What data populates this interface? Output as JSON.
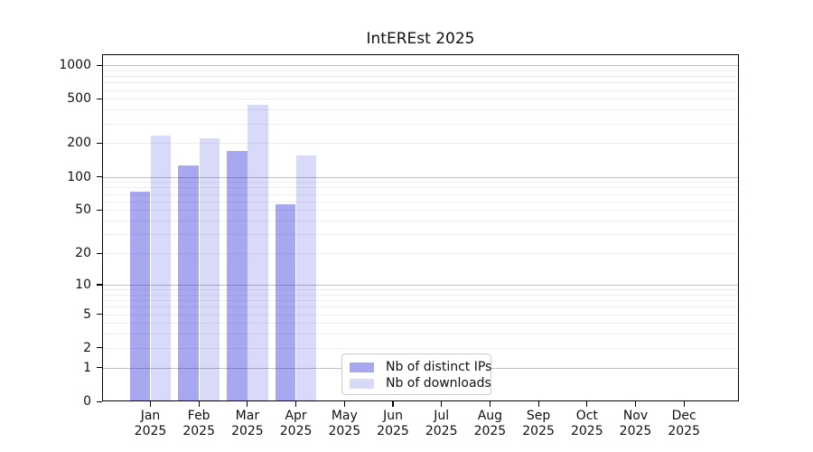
{
  "chart_data": {
    "type": "bar",
    "title": "IntEREst 2025",
    "xlabel": "",
    "ylabel": "",
    "y_scale": "log1p",
    "y_ticks": [
      0,
      1,
      2,
      5,
      10,
      20,
      50,
      100,
      200,
      500,
      1000
    ],
    "y_axis_top_value": 1250,
    "categories": [
      "Jan",
      "Feb",
      "Mar",
      "Apr",
      "May",
      "Jun",
      "Jul",
      "Aug",
      "Sep",
      "Oct",
      "Nov",
      "Dec"
    ],
    "year_label": "2025",
    "series": [
      {
        "name": "Nb of distinct IPs",
        "color": "rgba(30,30,220,0.39)",
        "solid_color": "#a7a7f2",
        "values": [
          74,
          126,
          172,
          56,
          0,
          0,
          0,
          0,
          0,
          0,
          0,
          0
        ]
      },
      {
        "name": "Nb of downloads",
        "color": "rgba(30,30,220,0.17)",
        "solid_color": "#d8d8f7",
        "values": [
          235,
          223,
          442,
          156,
          0,
          0,
          0,
          0,
          0,
          0,
          0,
          0
        ]
      }
    ],
    "grid": {
      "major_values": [
        1,
        10,
        100,
        1000
      ],
      "minor_values": [
        2,
        3,
        4,
        5,
        6,
        7,
        8,
        9,
        20,
        30,
        40,
        50,
        60,
        70,
        80,
        90,
        200,
        300,
        400,
        500,
        600,
        700,
        800,
        900
      ],
      "major_color": "#c0c0c0",
      "minor_color": "#ededed"
    },
    "legend_position": "lower center-right inside axes",
    "axes_color": "#000000",
    "background_color": "#ffffff"
  }
}
